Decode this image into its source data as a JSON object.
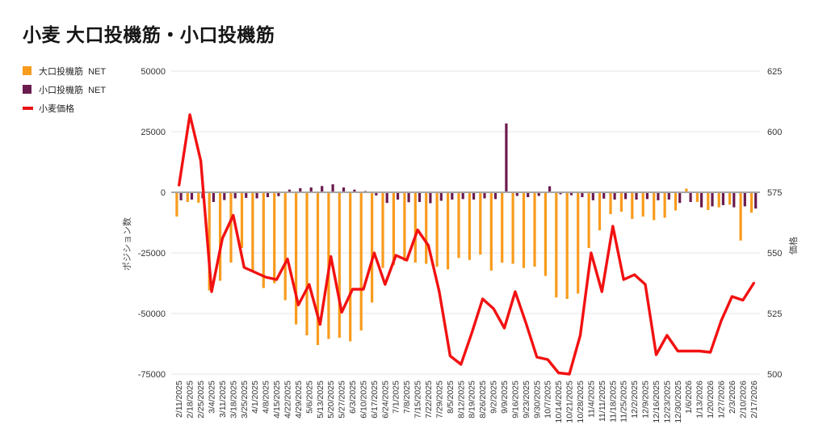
{
  "title": "小麦 大口投機筋・小口投機筋",
  "legend": [
    {
      "label": "大口投機筋  NET",
      "color": "#F89B1C",
      "shape": "square"
    },
    {
      "label": "小口投機筋  NET",
      "color": "#6B1B4E",
      "shape": "square"
    },
    {
      "label": "小麦価格",
      "color": "#E81212",
      "shape": "dash"
    }
  ],
  "axes": {
    "left": {
      "title": "ポジション数",
      "ticks": [
        50000,
        25000,
        0,
        -25000,
        -50000,
        -75000
      ],
      "range": [
        -75000,
        50000
      ]
    },
    "right": {
      "title": "価格",
      "ticks": [
        625,
        600,
        575,
        550,
        525,
        500
      ],
      "range": [
        500,
        625
      ]
    }
  },
  "colors": {
    "large_net": "#F89B1C",
    "small_net": "#6B1B4E",
    "price": "#F21111",
    "grid": "#e6e6e6",
    "zero_line": "#a6a6a6",
    "tick_text": "#333333"
  },
  "chart_data": {
    "type": "bar",
    "note": "two bar series on left axis (contracts NET) plus one line series on right axis (price)",
    "categories": [
      "2/11/2025",
      "2/18/2025",
      "2/25/2025",
      "3/4/2025",
      "3/11/2025",
      "3/18/2025",
      "3/25/2025",
      "4/1/2025",
      "4/8/2025",
      "4/15/2025",
      "4/22/2025",
      "4/29/2025",
      "5/6/2025",
      "5/13/2025",
      "5/20/2025",
      "5/27/2025",
      "6/3/2025",
      "6/10/2025",
      "6/17/2025",
      "6/24/2025",
      "7/1/2025",
      "7/8/2025",
      "7/15/2025",
      "7/22/2025",
      "7/29/2025",
      "8/5/2025",
      "8/12/2025",
      "8/19/2025",
      "8/26/2025",
      "9/2/2025",
      "9/9/2025",
      "9/16/2025",
      "9/23/2025",
      "9/30/2025",
      "10/7/2025",
      "10/14/2025",
      "10/21/2025",
      "10/28/2025",
      "11/4/2025",
      "11/11/2025",
      "11/18/2025",
      "11/25/2025",
      "12/2/2025",
      "12/9/2025",
      "12/16/2025",
      "12/23/2025",
      "12/30/2025",
      "1/6/2026",
      "1/13/2026",
      "1/20/2026",
      "1/27/2026",
      "2/3/2026",
      "2/10/2026",
      "2/17/2026"
    ],
    "series": [
      {
        "name": "大口投機筋 NET",
        "type": "bar",
        "axis": "left",
        "color": "#F89B1C",
        "values": [
          -10000,
          -4000,
          -4300,
          -40500,
          -36500,
          -29000,
          -23000,
          -32500,
          -39500,
          -37500,
          -44500,
          -54500,
          -59000,
          -63000,
          -60500,
          -60000,
          -61500,
          -57000,
          -45500,
          -31200,
          -30000,
          -28400,
          -29000,
          -29500,
          -30700,
          -31800,
          -27100,
          -27900,
          -25700,
          -32300,
          -29000,
          -29500,
          -31200,
          -30700,
          -34500,
          -43400,
          -44000,
          -41800,
          -23000,
          -15700,
          -9000,
          -8000,
          -11000,
          -10000,
          -11500,
          -10500,
          -7500,
          1500,
          -4000,
          -7300,
          -6200,
          -5100,
          -19900,
          -8400
        ]
      },
      {
        "name": "小口投機筋 NET",
        "type": "bar",
        "axis": "left",
        "color": "#6B1B4E",
        "values": [
          -3300,
          -3000,
          -2500,
          -4000,
          -3200,
          -2500,
          -2300,
          -2500,
          -2000,
          -1600,
          1100,
          1700,
          2000,
          2600,
          3300,
          2000,
          1100,
          500,
          -1300,
          -4400,
          -3000,
          -4100,
          -4000,
          -4500,
          -3500,
          -3000,
          -2800,
          -3000,
          -2500,
          -2800,
          28400,
          -1500,
          -2000,
          -1500,
          2500,
          -800,
          -1200,
          -2000,
          -3300,
          -2600,
          -3000,
          -2800,
          -3000,
          -2800,
          -3300,
          -3000,
          -4400,
          -4000,
          -6200,
          -5800,
          -5300,
          -6200,
          -5800,
          -6700
        ]
      },
      {
        "name": "小麦価格",
        "type": "line",
        "axis": "right",
        "color": "#F21111",
        "values": [
          578,
          607,
          588,
          534,
          556,
          565.5,
          544,
          542,
          540,
          539,
          547.5,
          528.5,
          537,
          520.5,
          548.5,
          525.5,
          535,
          535,
          550,
          537,
          549,
          547,
          559.5,
          553,
          534,
          507.5,
          504,
          517,
          531,
          527,
          519,
          534,
          521,
          507,
          506,
          500.5,
          500,
          516,
          550,
          534,
          561,
          539,
          541,
          537,
          508,
          516,
          509.5,
          509.5,
          509.5,
          509,
          522,
          532,
          530.5,
          537.5
        ]
      }
    ],
    "title": "小麦 大口投機筋・小口投機筋",
    "xlabel": "",
    "ylabel_left": "ポジション数",
    "ylabel_right": "価格",
    "ylim_left": [
      -75000,
      50000
    ],
    "ylim_right": [
      500,
      625
    ],
    "grid": true,
    "legend_position": "top-left"
  }
}
